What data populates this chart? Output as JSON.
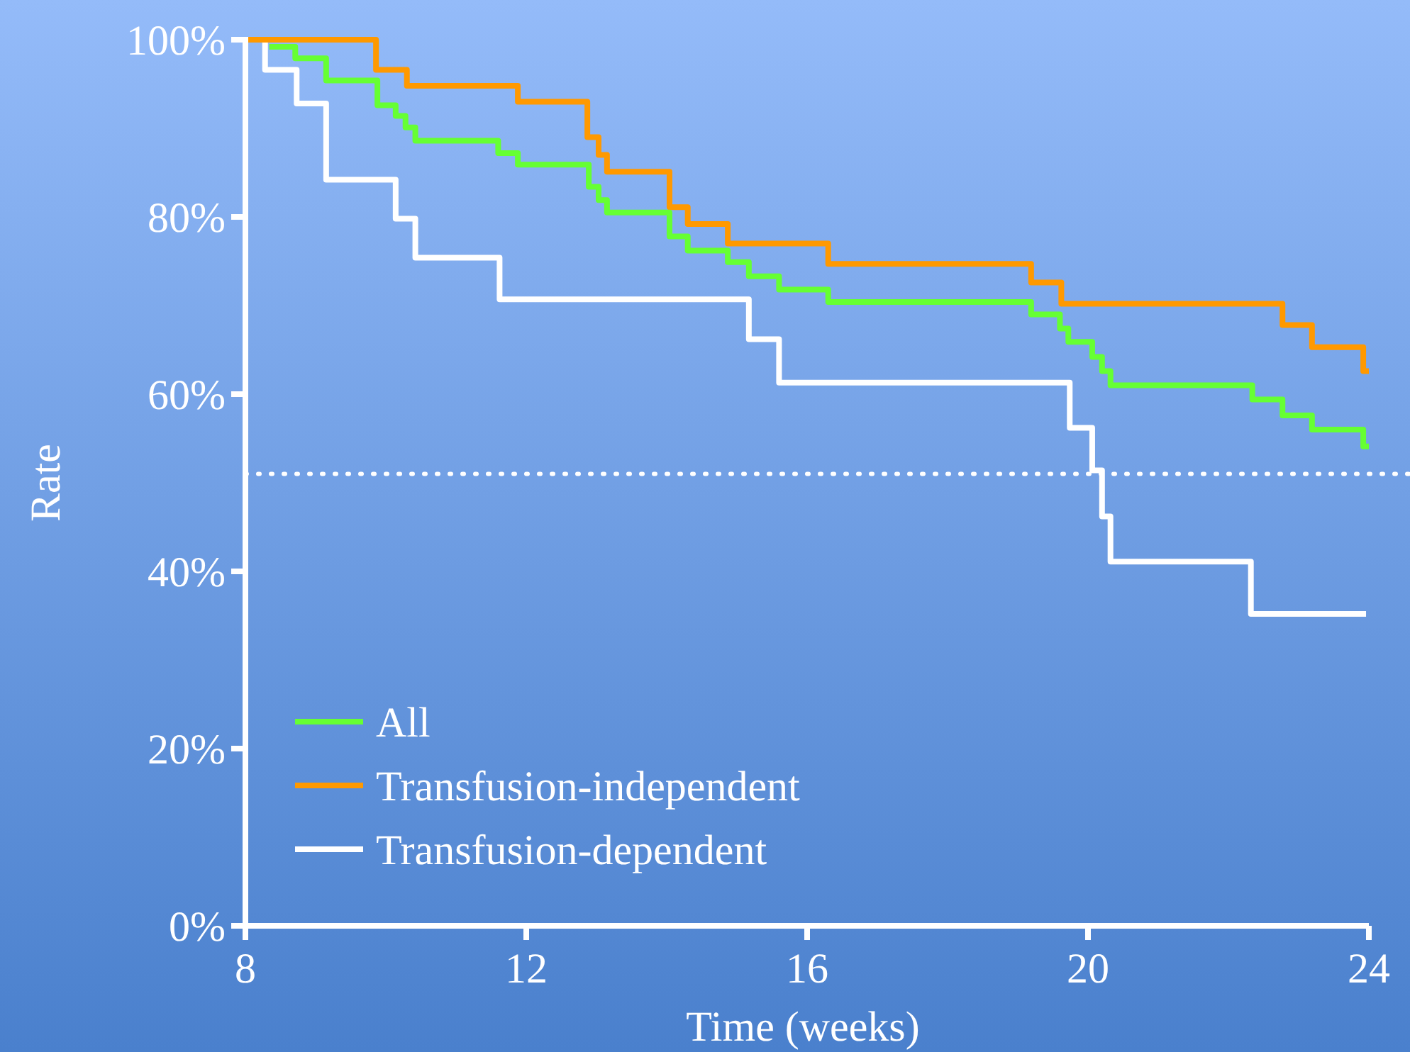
{
  "chart_data": {
    "type": "step",
    "xlabel": "Time (weeks)",
    "ylabel": "Rate",
    "xlim": [
      8,
      24
    ],
    "xticks": [
      8,
      12,
      16,
      20,
      24
    ],
    "ylim": [
      0,
      100
    ],
    "yticks": [
      {
        "value": 0,
        "label": "0%"
      },
      {
        "value": 20,
        "label": "20%"
      },
      {
        "value": 40,
        "label": "40%"
      },
      {
        "value": 60,
        "label": "60%"
      },
      {
        "value": 80,
        "label": "80%"
      },
      {
        "value": 100,
        "label": "100%"
      }
    ],
    "legend": "bottom left",
    "grid": false,
    "line_style": "solid",
    "marker": "none",
    "ref_lines": [
      {
        "axis": "y",
        "value": 51,
        "color": "#ffffff",
        "line_style": "dotted"
      }
    ],
    "series": [
      {
        "name": "All",
        "color": "#66ff33",
        "x": [
          8.34,
          8.71,
          9.15,
          9.88,
          10.14,
          10.28,
          10.42,
          11.6,
          11.88,
          12.89,
          13.03,
          13.15,
          14.04,
          14.3,
          14.87,
          15.17,
          15.6,
          16.3,
          19.19,
          19.6,
          19.72,
          20.06,
          20.2,
          20.32,
          22.34,
          22.77,
          23.19,
          23.92,
          24
        ],
        "values": [
          99.2,
          97.9,
          95.4,
          92.6,
          91.4,
          90.1,
          88.6,
          87.2,
          85.9,
          83.4,
          81.9,
          80.5,
          77.8,
          76.2,
          74.9,
          73.3,
          71.8,
          70.4,
          69,
          67.4,
          65.9,
          64.2,
          62.6,
          61,
          59.4,
          57.6,
          56,
          54.1,
          54.1
        ]
      },
      {
        "name": "Transfusion-independent",
        "color": "#ff9900",
        "x": [
          8,
          9.86,
          10.3,
          11.88,
          12.87,
          13.03,
          13.15,
          14.04,
          14.3,
          14.87,
          16.3,
          19.19,
          19.62,
          22.77,
          23.19,
          23.92,
          24
        ],
        "values": [
          100,
          96.6,
          94.8,
          93,
          89,
          87,
          85.1,
          81.1,
          79.2,
          77,
          74.7,
          72.6,
          70.2,
          67.8,
          65.3,
          62.6,
          62.6
        ]
      },
      {
        "name": "Transfusion-dependent",
        "color": "#ffffff",
        "x": [
          8,
          8.28,
          8.73,
          9.15,
          10.14,
          10.42,
          11.62,
          15.17,
          15.6,
          19.74,
          20.06,
          20.2,
          20.32,
          22.32,
          23.96
        ],
        "values": [
          100,
          96.6,
          92.8,
          84.2,
          79.8,
          75.4,
          70.7,
          66.2,
          61.3,
          56.2,
          51.4,
          46.2,
          41.1,
          35.2,
          35.2
        ]
      }
    ]
  }
}
